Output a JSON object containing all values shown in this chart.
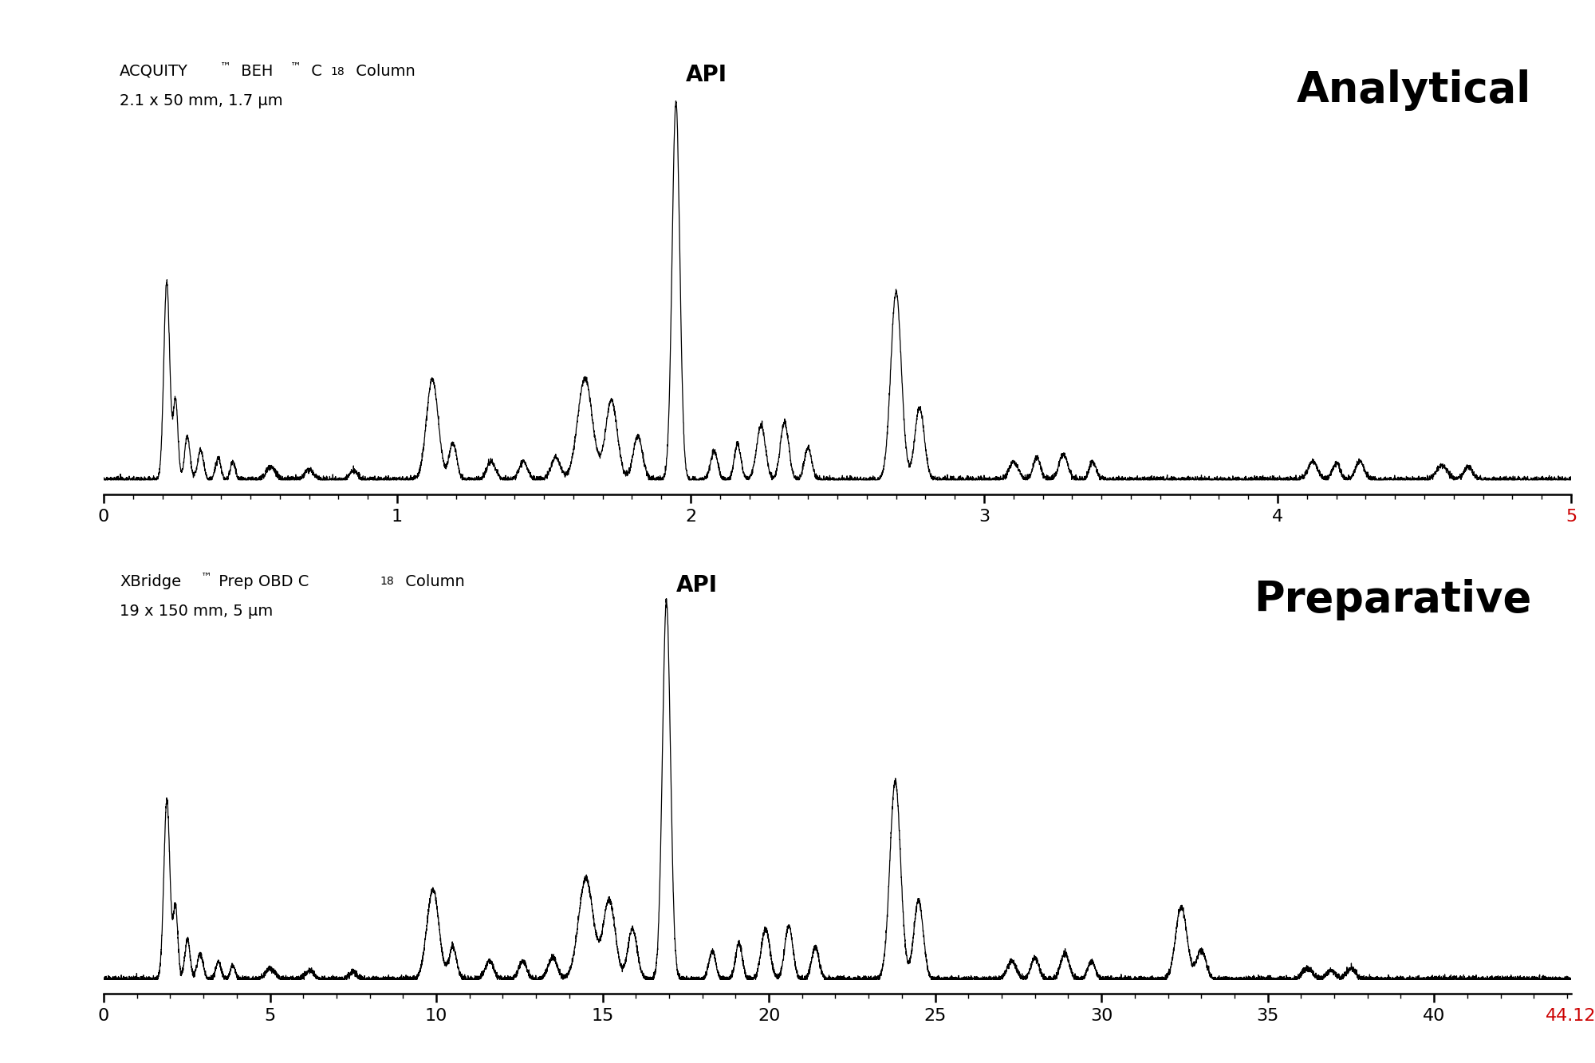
{
  "background_color": "#ffffff",
  "top_panel": {
    "title": "Analytical",
    "col_line1": "ACQUITY™ BEH™ C₁₈ Column",
    "col_line2": "2.1 x 50 mm, 1.7 μm",
    "api_label": "API",
    "xmin": 0,
    "xmax": 5,
    "xticks": [
      0,
      1,
      2,
      3,
      4,
      5
    ],
    "last_tick_color": "#cc0000"
  },
  "bottom_panel": {
    "title": "Preparative",
    "col_line1": "XBridge™ Prep OBD C₁₈ Column",
    "col_line2": "19 x 150 mm, 5 μm",
    "api_label": "API",
    "xmin": 0,
    "xmax": 44.12,
    "xticks": [
      0,
      5,
      10,
      15,
      20,
      25,
      30,
      35,
      40
    ],
    "last_tick_value": "44.12",
    "last_tick_color": "#cc0000"
  }
}
